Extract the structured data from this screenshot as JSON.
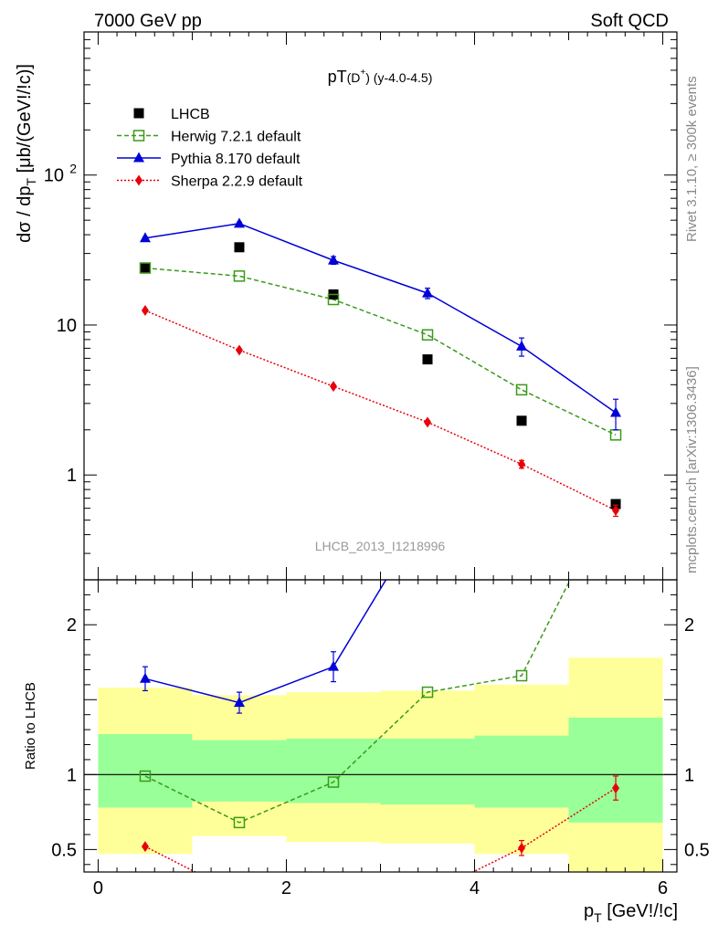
{
  "header": {
    "left": "7000 GeV pp",
    "right": "Soft QCD"
  },
  "side_labels": {
    "rivet": "Rivet 3.1.10, ≥ 300k events",
    "mcplots": "mcplots.cern.ch [arXiv:1306.3436]"
  },
  "chart_data": [
    {
      "type": "scatter",
      "title": "pT(D⁺) (y-4.0-4.5)",
      "title_main": "pT",
      "title_paren": "(D",
      "title_sup": "+",
      "title_close": ")",
      "title_suffix": " (y-4.0-4.5)",
      "ylabel": "dσ / dp",
      "ylabel_sub": "T",
      "ylabel_unit": " [μb/(GeV!/!c)]",
      "yscale": "log",
      "ylim": [
        0.2,
        900
      ],
      "xlim": [
        -0.15,
        6.15
      ],
      "yticks": [
        {
          "value": 1,
          "label": "1"
        },
        {
          "value": 10,
          "label": "10"
        },
        {
          "value": 100,
          "label": "10",
          "sup": "2"
        }
      ],
      "watermark": "LHCB_2013_I1218996",
      "legend": {
        "placement": "top-left",
        "entries": [
          "LHCB",
          "Herwig 7.2.1 default",
          "Pythia 8.170 default",
          "Sherpa 2.2.9 default"
        ]
      },
      "series": [
        {
          "name": "LHCB",
          "style": "data",
          "color": "#000000",
          "marker": "square",
          "x": [
            0.5,
            1.5,
            2.5,
            3.5,
            4.5,
            5.5
          ],
          "y": [
            24,
            33,
            16,
            5.9,
            2.3,
            0.64
          ]
        },
        {
          "name": "Herwig 7.2.1 default",
          "style": "dashed",
          "color": "#3a9a1a",
          "marker": "open-square",
          "x": [
            0.5,
            1.5,
            2.5,
            3.5,
            4.5,
            5.5
          ],
          "y": [
            24,
            21.2,
            14.8,
            8.6,
            3.7,
            1.85
          ]
        },
        {
          "name": "Pythia 8.170 default",
          "style": "solid",
          "color": "#0000d8",
          "marker": "triangle",
          "x": [
            0.5,
            1.5,
            2.5,
            3.5,
            4.5,
            5.5
          ],
          "y": [
            38,
            47.5,
            27,
            16.3,
            7.2,
            2.6
          ],
          "yerr": [
            0.6,
            1.0,
            1.6,
            1.3,
            1.0,
            0.6
          ]
        },
        {
          "name": "Sherpa 2.2.9 default",
          "style": "dotted",
          "color": "#e8000b",
          "marker": "diamond",
          "x": [
            0.5,
            1.5,
            2.5,
            3.5,
            4.5,
            5.5
          ],
          "y": [
            12.5,
            6.8,
            3.9,
            2.25,
            1.18,
            0.58
          ],
          "yerr": [
            0.2,
            0.1,
            0.08,
            0.05,
            0.07,
            0.05
          ]
        }
      ]
    },
    {
      "type": "line",
      "ylabel": "Ratio to LHCB",
      "xlabel": "p",
      "xlabel_sub": "T",
      "xlabel_unit": " [GeV!/!c]",
      "xlim": [
        -0.15,
        6.15
      ],
      "ylim": [
        0.35,
        2.3
      ],
      "xticks": [
        0,
        2,
        4,
        6
      ],
      "yticks": [
        {
          "value": 0.5,
          "label": "0.5"
        },
        {
          "value": 1,
          "label": "1"
        },
        {
          "value": 2,
          "label": "2"
        }
      ],
      "bands": {
        "x_edges": [
          0,
          1,
          2,
          3,
          4,
          5,
          6
        ],
        "inner": {
          "color": "#99ff99",
          "low": [
            0.78,
            0.82,
            0.81,
            0.8,
            0.78,
            0.68
          ],
          "high": [
            1.27,
            1.23,
            1.24,
            1.24,
            1.26,
            1.38
          ]
        },
        "outer": {
          "color": "#ffff99",
          "low": [
            0.47,
            0.59,
            0.55,
            0.54,
            0.47,
            0.32
          ],
          "high": [
            1.58,
            1.53,
            1.55,
            1.56,
            1.6,
            1.78
          ]
        }
      },
      "series": [
        {
          "name": "Herwig 7.2.1 default",
          "style": "dashed",
          "color": "#3a9a1a",
          "marker": "open-square",
          "x": [
            0.5,
            1.5,
            2.5,
            3.5,
            4.5,
            5.5
          ],
          "y": [
            0.99,
            0.68,
            0.95,
            1.55,
            1.66,
            2.9
          ]
        },
        {
          "name": "Pythia 8.170 default",
          "style": "solid",
          "color": "#0000d8",
          "marker": "triangle",
          "x": [
            0.5,
            1.5,
            2.5,
            3.5
          ],
          "y": [
            1.64,
            1.48,
            1.72,
            2.76
          ],
          "yerr": [
            0.08,
            0.07,
            0.1,
            0.2
          ]
        },
        {
          "name": "Sherpa 2.2.9 default",
          "style": "dotted",
          "color": "#e8000b",
          "marker": "diamond",
          "x": [
            0.5,
            1.5,
            3.5,
            4.5,
            5.5
          ],
          "y": [
            0.52,
            0.2,
            0.2,
            0.51,
            0.91
          ],
          "yerr": [
            0,
            0,
            0,
            0.05,
            0.08
          ]
        }
      ]
    }
  ]
}
